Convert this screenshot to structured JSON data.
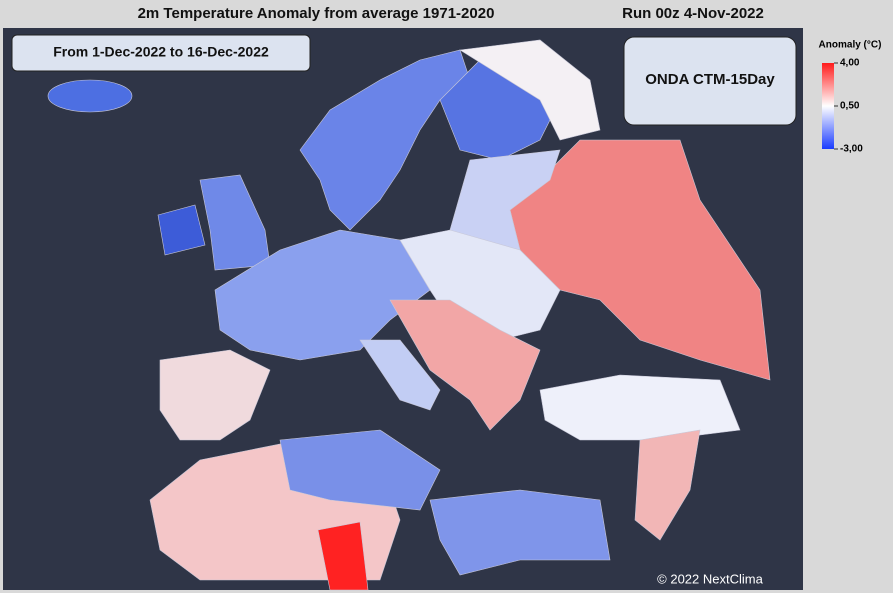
{
  "header": {
    "title": "2m Temperature Anomaly from average 1971-2020",
    "run": "Run 00z 4-Nov-2022"
  },
  "period": "From 1-Dec-2022 to 16-Dec-2022",
  "model": "ONDA CTM-15Day",
  "legend": {
    "title": "Anomaly (°C)",
    "lim": [
      -3,
      4
    ],
    "ticks": [
      {
        "value": 4,
        "label": "4,00"
      },
      {
        "value": 0.5,
        "label": "0,50"
      },
      {
        "value": -3,
        "label": "-3,00"
      }
    ]
  },
  "credit": "© 2022 NextClima"
}
